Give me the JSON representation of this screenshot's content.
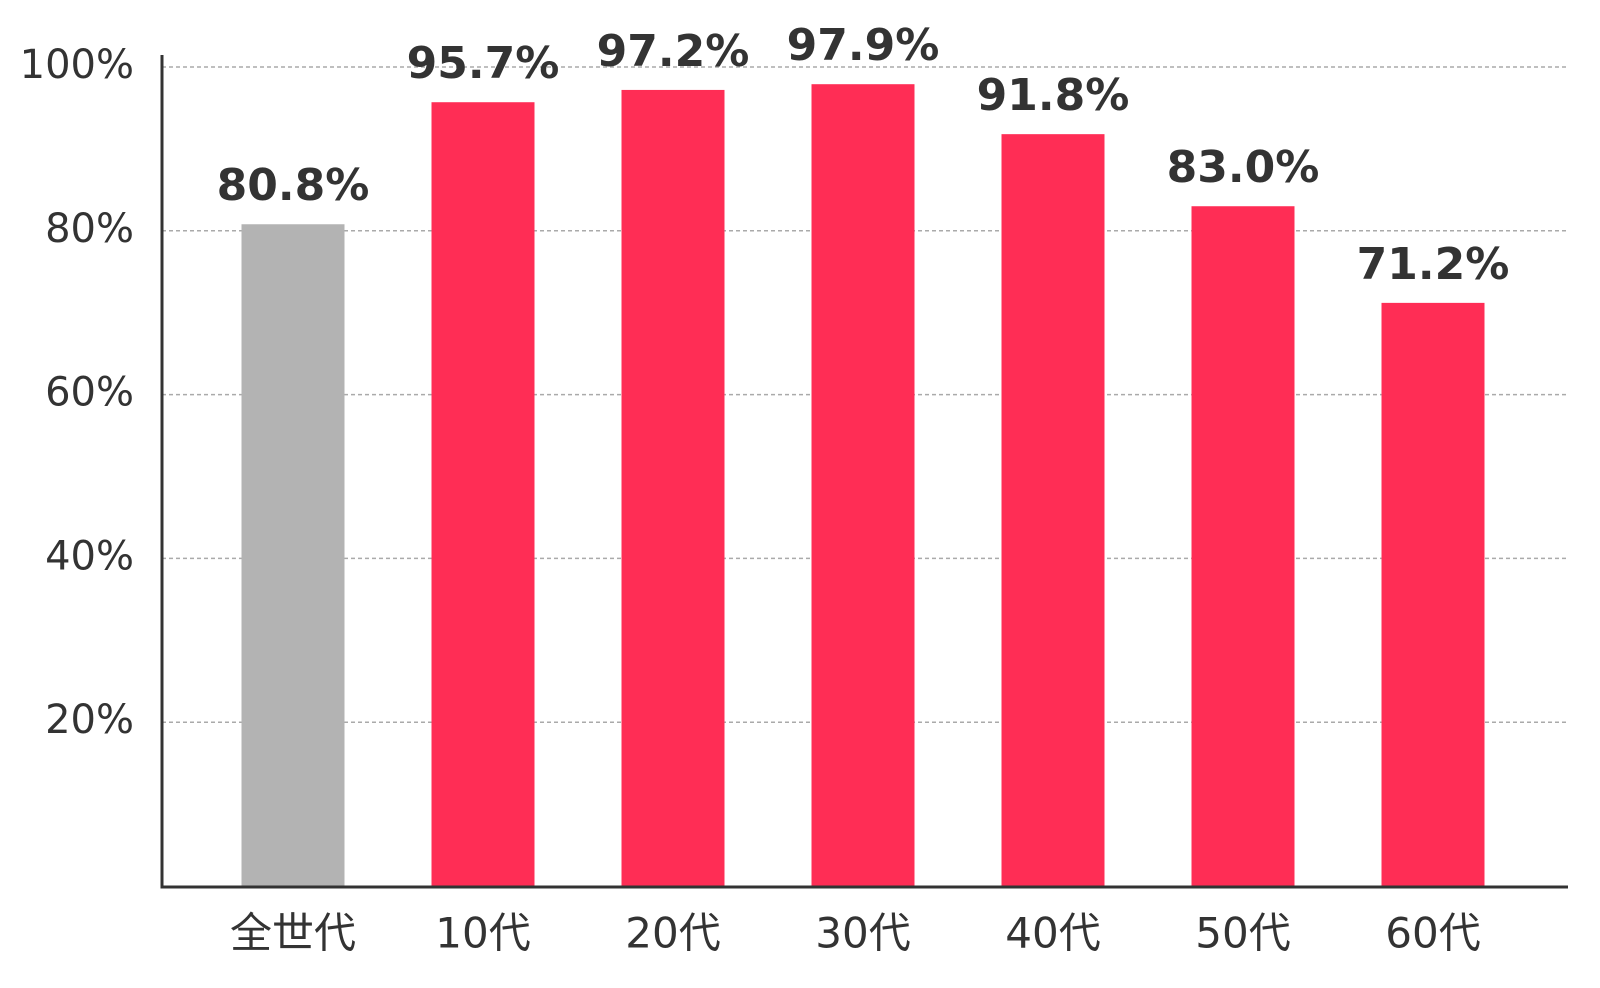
{
  "chart_data": {
    "type": "bar",
    "categories": [
      "全世代",
      "10代",
      "20代",
      "30代",
      "40代",
      "50代",
      "60代"
    ],
    "values": [
      80.8,
      95.7,
      97.2,
      97.9,
      91.8,
      83.0,
      71.2
    ],
    "value_labels": [
      "80.8%",
      "95.7%",
      "97.2%",
      "97.9%",
      "91.8%",
      "83.0%",
      "71.2%"
    ],
    "colors": [
      "#b3b3b3",
      "#ff2d55",
      "#ff2d55",
      "#ff2d55",
      "#ff2d55",
      "#ff2d55",
      "#ff2d55"
    ],
    "ylim": [
      0,
      100
    ],
    "yticks": [
      {
        "value": 20,
        "label": "20%"
      },
      {
        "value": 40,
        "label": "40%"
      },
      {
        "value": 60,
        "label": "60%"
      },
      {
        "value": 80,
        "label": "80%"
      },
      {
        "value": 100,
        "label": "100%"
      }
    ],
    "grid": true
  }
}
